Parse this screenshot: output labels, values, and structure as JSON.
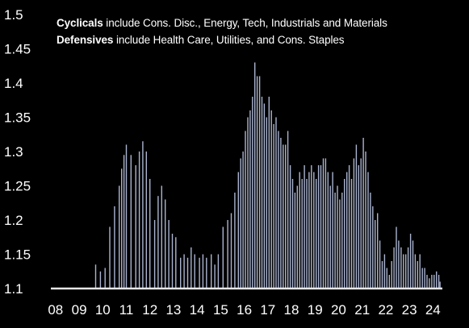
{
  "chart_data": {
    "type": "bar",
    "title": "",
    "xlabel": "",
    "ylabel": "",
    "notes": [
      {
        "bold": "Cyclicals",
        "rest": " include Cons. Disc., Energy, Tech, Industrials and Materials"
      },
      {
        "bold": "Defensives",
        "rest": " include Health Care, Utilities, and Cons. Staples"
      }
    ],
    "ylim": [
      1.1,
      1.5
    ],
    "yticks": [
      "1.1",
      "1.15",
      "1.2",
      "1.25",
      "1.3",
      "1.35",
      "1.4",
      "1.45",
      "1.5"
    ],
    "xlim": [
      2007.8,
      2024.4
    ],
    "xticks": [
      "08",
      "09",
      "10",
      "11",
      "12",
      "13",
      "14",
      "15",
      "16",
      "17",
      "18",
      "19",
      "20",
      "21",
      "22",
      "23",
      "24"
    ],
    "grid": false,
    "colors": {
      "background": "#000000",
      "bar": "#aab4d0",
      "axis": "#e6e6e6",
      "text": "#ffffff"
    },
    "series": [
      {
        "x": [
          2009.7,
          2009.9,
          2010.1,
          2010.3,
          2010.5,
          2010.7,
          2010.8,
          2010.9,
          2011.0,
          2011.2,
          2011.4,
          2011.55,
          2011.7,
          2011.85,
          2012.0,
          2012.2,
          2012.35,
          2012.5,
          2012.65,
          2012.8,
          2012.95,
          2013.1,
          2013.3,
          2013.45,
          2013.6,
          2013.75,
          2013.9,
          2014.1,
          2014.25,
          2014.4,
          2014.6,
          2014.75,
          2014.9,
          2015.1,
          2015.3,
          2015.45,
          2015.6,
          2015.75,
          2015.85,
          2015.95,
          2016.05,
          2016.15,
          2016.25,
          2016.35,
          2016.45,
          2016.55,
          2016.65,
          2016.75,
          2016.85,
          2016.95,
          2017.05,
          2017.15,
          2017.25,
          2017.35,
          2017.45,
          2017.55,
          2017.65,
          2017.75,
          2017.85,
          2017.95,
          2018.05,
          2018.15,
          2018.25,
          2018.35,
          2018.45,
          2018.55,
          2018.65,
          2018.75,
          2018.85,
          2018.95,
          2019.05,
          2019.15,
          2019.25,
          2019.35,
          2019.45,
          2019.55,
          2019.65,
          2019.75,
          2019.85,
          2019.95,
          2020.05,
          2020.15,
          2020.25,
          2020.35,
          2020.45,
          2020.55,
          2020.65,
          2020.75,
          2020.85,
          2020.95,
          2021.05,
          2021.15,
          2021.25,
          2021.35,
          2021.45,
          2021.55,
          2021.65,
          2021.75,
          2021.85,
          2021.95,
          2022.05,
          2022.15,
          2022.25,
          2022.35,
          2022.45,
          2022.55,
          2022.65,
          2022.75,
          2022.85,
          2022.95,
          2023.05,
          2023.15,
          2023.25,
          2023.35,
          2023.45,
          2023.55,
          2023.65,
          2023.75,
          2023.85,
          2023.95,
          2024.05,
          2024.15,
          2024.25,
          2024.3
        ],
        "values": [
          1.135,
          1.125,
          1.13,
          1.19,
          1.22,
          1.25,
          1.275,
          1.295,
          1.31,
          1.295,
          1.28,
          1.3,
          1.315,
          1.3,
          1.26,
          1.2,
          1.235,
          1.25,
          1.23,
          1.2,
          1.18,
          1.175,
          1.145,
          1.15,
          1.145,
          1.16,
          1.15,
          1.145,
          1.15,
          1.145,
          1.15,
          1.135,
          1.15,
          1.19,
          1.2,
          1.21,
          1.24,
          1.27,
          1.29,
          1.3,
          1.33,
          1.35,
          1.36,
          1.38,
          1.43,
          1.41,
          1.41,
          1.38,
          1.37,
          1.35,
          1.38,
          1.36,
          1.34,
          1.35,
          1.33,
          1.32,
          1.31,
          1.31,
          1.33,
          1.28,
          1.26,
          1.24,
          1.25,
          1.27,
          1.26,
          1.28,
          1.26,
          1.27,
          1.28,
          1.27,
          1.26,
          1.28,
          1.28,
          1.29,
          1.29,
          1.27,
          1.25,
          1.27,
          1.24,
          1.25,
          1.23,
          1.24,
          1.26,
          1.27,
          1.28,
          1.26,
          1.29,
          1.31,
          1.28,
          1.29,
          1.32,
          1.3,
          1.27,
          1.24,
          1.22,
          1.2,
          1.21,
          1.17,
          1.14,
          1.15,
          1.13,
          1.12,
          1.14,
          1.16,
          1.19,
          1.17,
          1.16,
          1.15,
          1.15,
          1.16,
          1.18,
          1.17,
          1.15,
          1.14,
          1.15,
          1.13,
          1.13,
          1.12,
          1.115,
          1.12,
          1.12,
          1.125,
          1.12,
          1.11
        ]
      }
    ]
  }
}
